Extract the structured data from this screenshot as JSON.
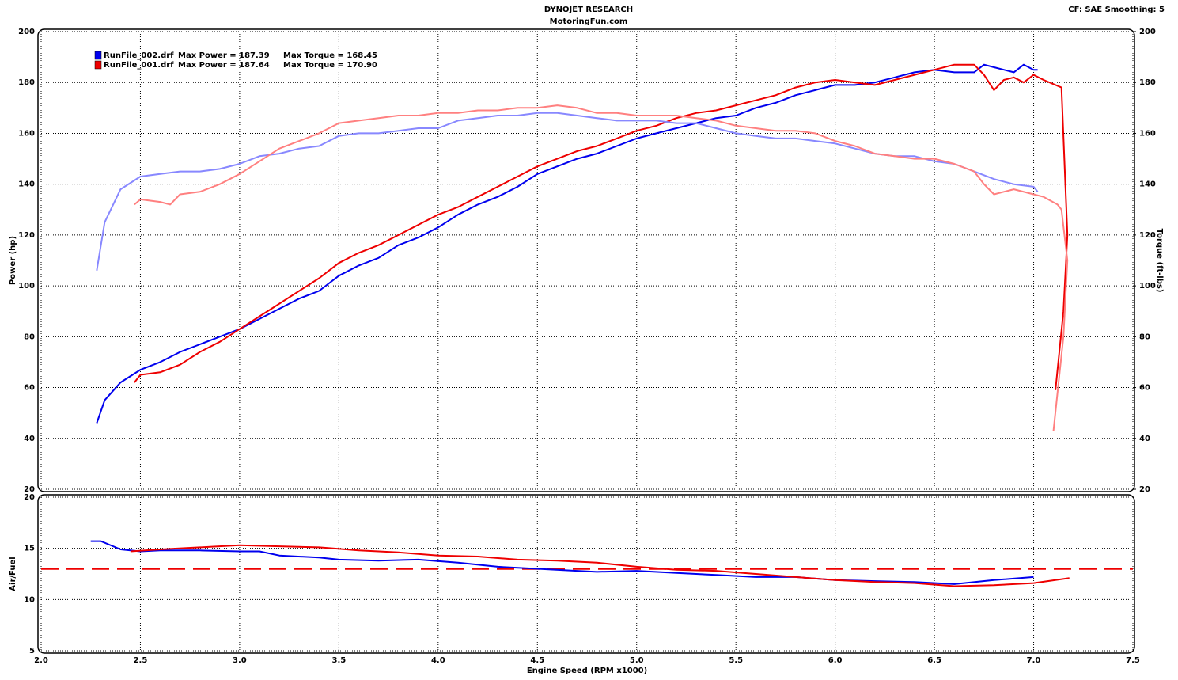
{
  "header": {
    "title": "DYNOJET RESEARCH",
    "subtitle": "MotoringFun.com",
    "info": "CF: SAE  Smoothing: 5"
  },
  "chart_data": [
    {
      "type": "line",
      "ylabel": "Power (hp)",
      "y2label": "Torque (ft-lbs)",
      "ylim": [
        20,
        200
      ],
      "yticks": [
        20,
        40,
        60,
        80,
        100,
        120,
        140,
        160,
        180,
        200
      ],
      "y2lim": [
        20,
        200
      ],
      "y2ticks": [
        20,
        40,
        60,
        80,
        100,
        120,
        140,
        160,
        180,
        200
      ],
      "grid": true,
      "legend": [
        {
          "name": "RunFile_002.drf",
          "color": "#0000ee",
          "max_power": "Max Power = 187.39",
          "max_torque": "Max Torque = 168.45"
        },
        {
          "name": "RunFile_001.drf",
          "color": "#ee0000",
          "max_power": "Max Power = 187.64",
          "max_torque": "Max Torque = 170.90"
        }
      ],
      "series": [
        {
          "color": "#0000ee",
          "x": [
            2.28,
            2.32,
            2.4,
            2.5,
            2.6,
            2.7,
            2.8,
            2.9,
            3.0,
            3.1,
            3.2,
            3.3,
            3.4,
            3.5,
            3.6,
            3.7,
            3.8,
            3.9,
            4.0,
            4.1,
            4.2,
            4.3,
            4.4,
            4.5,
            4.6,
            4.7,
            4.8,
            4.9,
            5.0,
            5.1,
            5.2,
            5.3,
            5.4,
            5.5,
            5.6,
            5.7,
            5.8,
            5.9,
            6.0,
            6.1,
            6.2,
            6.3,
            6.4,
            6.5,
            6.6,
            6.7,
            6.75,
            6.8,
            6.85,
            6.9,
            6.95,
            7.0,
            7.02
          ],
          "values": [
            46,
            55,
            62,
            67,
            70,
            74,
            77,
            80,
            83,
            87,
            91,
            95,
            98,
            104,
            108,
            111,
            116,
            119,
            123,
            128,
            132,
            135,
            139,
            144,
            147,
            150,
            152,
            155,
            158,
            160,
            162,
            164,
            166,
            167,
            170,
            172,
            175,
            177,
            179,
            179,
            180,
            182,
            184,
            185,
            184,
            184,
            187,
            186,
            185,
            184,
            187,
            185,
            185
          ]
        },
        {
          "color": "#ee0000",
          "x": [
            2.47,
            2.5,
            2.6,
            2.7,
            2.8,
            2.9,
            3.0,
            3.1,
            3.2,
            3.3,
            3.4,
            3.5,
            3.6,
            3.7,
            3.8,
            3.9,
            4.0,
            4.1,
            4.2,
            4.3,
            4.4,
            4.5,
            4.6,
            4.7,
            4.8,
            4.9,
            5.0,
            5.1,
            5.2,
            5.3,
            5.4,
            5.5,
            5.6,
            5.7,
            5.8,
            5.9,
            6.0,
            6.1,
            6.2,
            6.3,
            6.4,
            6.5,
            6.6,
            6.7,
            6.75,
            6.8,
            6.85,
            6.9,
            6.95,
            7.0,
            7.05,
            7.14,
            7.17,
            7.15,
            7.11
          ],
          "values": [
            62,
            65,
            66,
            69,
            74,
            78,
            83,
            88,
            93,
            98,
            103,
            109,
            113,
            116,
            120,
            124,
            128,
            131,
            135,
            139,
            143,
            147,
            150,
            153,
            155,
            158,
            161,
            163,
            166,
            168,
            169,
            171,
            173,
            175,
            178,
            180,
            181,
            180,
            179,
            181,
            183,
            185,
            187,
            187,
            183,
            177,
            181,
            182,
            180,
            183,
            181,
            178,
            120,
            90,
            59
          ]
        },
        {
          "color": "#8888ff",
          "axis": "y2",
          "x": [
            2.28,
            2.32,
            2.4,
            2.5,
            2.6,
            2.7,
            2.8,
            2.9,
            3.0,
            3.1,
            3.2,
            3.3,
            3.4,
            3.5,
            3.6,
            3.7,
            3.8,
            3.9,
            4.0,
            4.1,
            4.2,
            4.3,
            4.4,
            4.5,
            4.6,
            4.7,
            4.8,
            4.9,
            5.0,
            5.1,
            5.2,
            5.3,
            5.4,
            5.5,
            5.6,
            5.7,
            5.8,
            5.9,
            6.0,
            6.1,
            6.2,
            6.3,
            6.4,
            6.5,
            6.6,
            6.7,
            6.8,
            6.9,
            7.0,
            7.02
          ],
          "values": [
            106,
            125,
            138,
            143,
            144,
            145,
            145,
            146,
            148,
            151,
            152,
            154,
            155,
            159,
            160,
            160,
            161,
            162,
            162,
            165,
            166,
            167,
            167,
            168,
            168,
            167,
            166,
            165,
            165,
            165,
            164,
            164,
            162,
            160,
            159,
            158,
            158,
            157,
            156,
            154,
            152,
            151,
            151,
            149,
            148,
            145,
            142,
            140,
            139,
            137
          ]
        },
        {
          "color": "#ff8080",
          "axis": "y2",
          "x": [
            2.47,
            2.5,
            2.6,
            2.65,
            2.7,
            2.8,
            2.9,
            3.0,
            3.1,
            3.2,
            3.3,
            3.4,
            3.5,
            3.6,
            3.7,
            3.8,
            3.9,
            4.0,
            4.1,
            4.2,
            4.3,
            4.4,
            4.5,
            4.6,
            4.7,
            4.8,
            4.9,
            5.0,
            5.1,
            5.2,
            5.3,
            5.4,
            5.5,
            5.6,
            5.7,
            5.8,
            5.9,
            6.0,
            6.1,
            6.2,
            6.3,
            6.4,
            6.5,
            6.6,
            6.7,
            6.75,
            6.8,
            6.9,
            7.0,
            7.05,
            7.12,
            7.14,
            7.17,
            7.15,
            7.1
          ],
          "values": [
            132,
            134,
            133,
            132,
            136,
            137,
            140,
            144,
            149,
            154,
            157,
            160,
            164,
            165,
            166,
            167,
            167,
            168,
            168,
            169,
            169,
            170,
            170,
            171,
            170,
            168,
            168,
            167,
            167,
            167,
            166,
            165,
            163,
            162,
            161,
            161,
            160,
            157,
            155,
            152,
            151,
            150,
            150,
            148,
            145,
            140,
            136,
            138,
            136,
            135,
            132,
            130,
            110,
            80,
            43
          ]
        }
      ]
    },
    {
      "type": "line",
      "ylabel": "Air/Fuel",
      "xlabel": "Engine Speed (RPM x1000)",
      "xlim": [
        2.0,
        7.5
      ],
      "xticks": [
        {
          "value": 2,
          "label": "2.0"
        },
        2.5,
        {
          "value": 3,
          "label": "3.0"
        },
        3.5,
        {
          "value": 4,
          "label": "4.0"
        },
        4.5,
        {
          "value": 5,
          "label": "5.0"
        },
        5.5,
        {
          "value": 6,
          "label": "6.0"
        },
        6.5,
        {
          "value": 7,
          "label": "7.0"
        },
        7.5
      ],
      "ylim": [
        5,
        20
      ],
      "yticks": [
        5,
        10,
        15,
        20
      ],
      "grid": true,
      "reference_line": {
        "value": 13,
        "color": "#ee0000"
      },
      "series": [
        {
          "color": "#0000ee",
          "x": [
            2.25,
            2.3,
            2.4,
            2.5,
            2.6,
            2.8,
            3.0,
            3.1,
            3.2,
            3.4,
            3.5,
            3.7,
            3.9,
            4.1,
            4.3,
            4.5,
            4.7,
            4.8,
            5.0,
            5.2,
            5.4,
            5.6,
            5.8,
            6.0,
            6.2,
            6.4,
            6.6,
            6.8,
            7.0
          ],
          "values": [
            15.7,
            15.7,
            14.9,
            14.7,
            14.8,
            14.8,
            14.7,
            14.7,
            14.3,
            14.1,
            13.9,
            13.8,
            13.9,
            13.6,
            13.2,
            13.0,
            12.8,
            12.7,
            12.8,
            12.6,
            12.4,
            12.2,
            12.2,
            11.9,
            11.8,
            11.7,
            11.5,
            11.9,
            12.2
          ]
        },
        {
          "color": "#ee0000",
          "x": [
            2.45,
            2.6,
            2.8,
            3.0,
            3.2,
            3.4,
            3.6,
            3.8,
            4.0,
            4.2,
            4.4,
            4.6,
            4.8,
            5.0,
            5.2,
            5.4,
            5.6,
            5.8,
            6.0,
            6.2,
            6.4,
            6.6,
            6.8,
            7.0,
            7.18
          ],
          "values": [
            14.7,
            14.9,
            15.1,
            15.3,
            15.2,
            15.1,
            14.8,
            14.6,
            14.3,
            14.2,
            13.9,
            13.8,
            13.6,
            13.2,
            12.9,
            12.8,
            12.5,
            12.2,
            11.9,
            11.7,
            11.6,
            11.3,
            11.4,
            11.6,
            12.1
          ]
        }
      ]
    }
  ]
}
